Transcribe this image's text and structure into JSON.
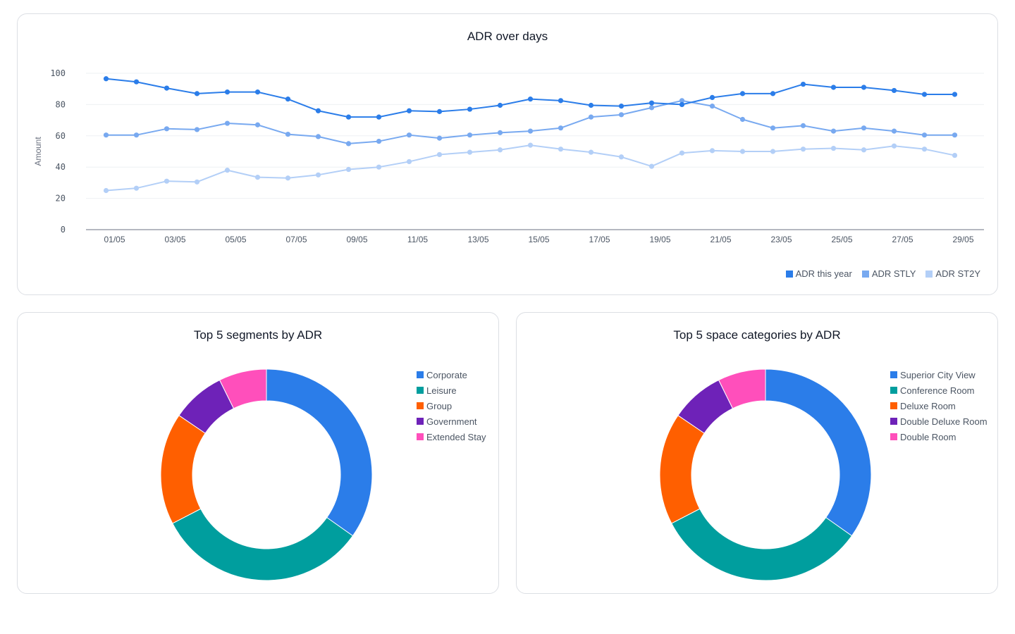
{
  "line_chart": {
    "title": "ADR over days",
    "ylabel": "Amount"
  },
  "segments_chart": {
    "title": "Top 5 segments by ADR"
  },
  "categories_chart": {
    "title": "Top 5 space categories by ADR"
  },
  "chart_data": [
    {
      "type": "line",
      "title": "ADR over days",
      "xlabel": "",
      "ylabel": "Amount",
      "ylim": [
        0,
        100
      ],
      "yticks": [
        0,
        20,
        40,
        60,
        80,
        100
      ],
      "grid": true,
      "legend_position": "bottom-right",
      "x": [
        "01/05",
        "02/05",
        "03/05",
        "04/05",
        "05/05",
        "06/05",
        "07/05",
        "08/05",
        "09/05",
        "10/05",
        "11/05",
        "12/05",
        "13/05",
        "14/05",
        "15/05",
        "16/05",
        "17/05",
        "18/05",
        "19/05",
        "20/05",
        "21/05",
        "22/05",
        "23/05",
        "24/05",
        "25/05",
        "26/05",
        "27/05",
        "28/05",
        "29/05"
      ],
      "x_tick_labels": [
        "01/05",
        "03/05",
        "05/05",
        "07/05",
        "09/05",
        "11/05",
        "13/05",
        "15/05",
        "17/05",
        "19/05",
        "21/05",
        "23/05",
        "25/05",
        "27/05",
        "29/05"
      ],
      "series": [
        {
          "name": "ADR this year",
          "color": "#2b7de9",
          "values": [
            96.5,
            94.5,
            90.5,
            87,
            88,
            88,
            83.5,
            76,
            72,
            72,
            76,
            75.5,
            77,
            79.5,
            83.5,
            82.5,
            79.5,
            79,
            81,
            80,
            84.5,
            87,
            87,
            93,
            91,
            91,
            89,
            86.5,
            86.5
          ]
        },
        {
          "name": "ADR STLY",
          "color": "#78a9f0",
          "values": [
            60.5,
            60.5,
            64.5,
            64,
            68,
            67,
            61,
            59.5,
            55,
            56.5,
            60.5,
            58.5,
            60.5,
            62,
            63,
            65,
            72,
            73.5,
            78,
            82.5,
            79,
            70.5,
            65,
            66.5,
            63,
            65,
            63,
            60.5,
            60.5
          ]
        },
        {
          "name": "ADR ST2Y",
          "color": "#b3cff7",
          "values": [
            25,
            26.5,
            31,
            30.5,
            38,
            33.5,
            33,
            35,
            38.5,
            40,
            43.5,
            48,
            49.5,
            51,
            54,
            51.5,
            49.5,
            46.5,
            40.5,
            49,
            50.5,
            50,
            50,
            51.5,
            52,
            51,
            53.5,
            51.5,
            47.5
          ]
        }
      ]
    },
    {
      "type": "pie",
      "donut": true,
      "title": "Top 5 segments by ADR",
      "legend_position": "right",
      "labels": [
        "Corporate",
        "Leisure",
        "Group",
        "Government",
        "Extended Stay"
      ],
      "values": [
        34.8,
        32.6,
        17.1,
        8.2,
        7.3
      ],
      "colors": [
        "#2b7de9",
        "#009e9e",
        "#ff5f00",
        "#6e22b8",
        "#ff4fbb"
      ]
    },
    {
      "type": "pie",
      "donut": true,
      "title": "Top 5 space categories by ADR",
      "legend_position": "right",
      "labels": [
        "Superior City View",
        "Conference Room",
        "Deluxe Room",
        "Double Deluxe Room",
        "Double Room"
      ],
      "values": [
        34.8,
        32.6,
        17.1,
        8.2,
        7.3
      ],
      "colors": [
        "#2b7de9",
        "#009e9e",
        "#ff5f00",
        "#6e22b8",
        "#ff4fbb"
      ]
    }
  ]
}
